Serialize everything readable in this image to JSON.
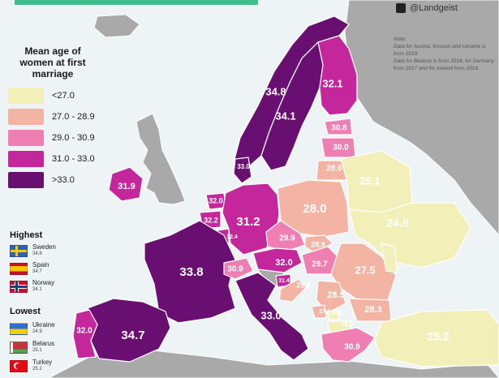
{
  "legend": {
    "title": "Mean age of women at first marriage",
    "bins": [
      {
        "label": "<27.0",
        "color": "#f2efb8"
      },
      {
        "label": "27.0 - 28.9",
        "color": "#f3b4a4"
      },
      {
        "label": "29.0 - 30.9",
        "color": "#ef7fb2"
      },
      {
        "label": "31.0 - 33.0",
        "color": "#c3279b"
      },
      {
        "label": ">33.0",
        "color": "#6a0f72"
      }
    ]
  },
  "highest": {
    "title": "Highest",
    "items": [
      {
        "name": "Sweden",
        "value": "34.8"
      },
      {
        "name": "Spain",
        "value": "34.7"
      },
      {
        "name": "Norway",
        "value": "34.1"
      }
    ]
  },
  "lowest": {
    "title": "Lowest",
    "items": [
      {
        "name": "Ukraine",
        "value": "24.9"
      },
      {
        "name": "Belarus",
        "value": "25.1"
      },
      {
        "name": "Turkey",
        "value": "25.2"
      }
    ]
  },
  "brand": {
    "handle": "@Landgeist",
    "icon": "twitter-icon"
  },
  "note": {
    "lines": [
      "Note:",
      "Data for Austria, Kosovo and Ukraine is from 2019.",
      "Data for Belarus is from 2018, for Germany from 2017 and for Ireland from 2016."
    ]
  },
  "map_data": {
    "regions": [
      {
        "id": "norway",
        "value": "34.1",
        "bin": 4
      },
      {
        "id": "sweden",
        "value": "34.8",
        "bin": 4
      },
      {
        "id": "finland",
        "value": "32.1",
        "bin": 3
      },
      {
        "id": "estonia",
        "value": "30.8",
        "bin": 2
      },
      {
        "id": "latvia",
        "value": "30.0",
        "bin": 2
      },
      {
        "id": "lithuania",
        "value": "28.6",
        "bin": 1
      },
      {
        "id": "denmark",
        "value": "33.0",
        "bin": 4
      },
      {
        "id": "ireland",
        "value": "31.9",
        "bin": 3
      },
      {
        "id": "netherlands",
        "value": "32.0",
        "bin": 3
      },
      {
        "id": "belgium",
        "value": "32.2",
        "bin": 3
      },
      {
        "id": "luxembourg",
        "value": "32.4",
        "bin": 3
      },
      {
        "id": "germany",
        "value": "31.2",
        "bin": 3
      },
      {
        "id": "poland",
        "value": "28.0",
        "bin": 1
      },
      {
        "id": "belarus",
        "value": "25.1",
        "bin": 0
      },
      {
        "id": "ukraine",
        "value": "24.9",
        "bin": 0
      },
      {
        "id": "czechia",
        "value": "29.9",
        "bin": 2
      },
      {
        "id": "slovakia",
        "value": "28.9",
        "bin": 1
      },
      {
        "id": "austria",
        "value": "32.0",
        "bin": 3
      },
      {
        "id": "hungary",
        "value": "29.7",
        "bin": 2
      },
      {
        "id": "romania",
        "value": "27.5",
        "bin": 1
      },
      {
        "id": "moldova",
        "value": "",
        "bin": 0
      },
      {
        "id": "france",
        "value": "33.8",
        "bin": 4
      },
      {
        "id": "switzerland",
        "value": "30.9",
        "bin": 2
      },
      {
        "id": "slovenia",
        "value": "31.4",
        "bin": 3
      },
      {
        "id": "croatia",
        "value": "28.8",
        "bin": 1
      },
      {
        "id": "serbia",
        "value": "28.5",
        "bin": 1
      },
      {
        "id": "bulgaria",
        "value": "28.3",
        "bin": 1
      },
      {
        "id": "montenegro",
        "value": "27.4",
        "bin": 1
      },
      {
        "id": "kosovo",
        "value": "26.3",
        "bin": 0
      },
      {
        "id": "macedonia",
        "value": "26.6",
        "bin": 0
      },
      {
        "id": "greece",
        "value": "30.9",
        "bin": 2
      },
      {
        "id": "italy",
        "value": "33.0",
        "bin": 4
      },
      {
        "id": "spain",
        "value": "34.7",
        "bin": 4
      },
      {
        "id": "portugal",
        "value": "32.0",
        "bin": 3
      },
      {
        "id": "turkey",
        "value": "25.2",
        "bin": 0
      }
    ]
  }
}
